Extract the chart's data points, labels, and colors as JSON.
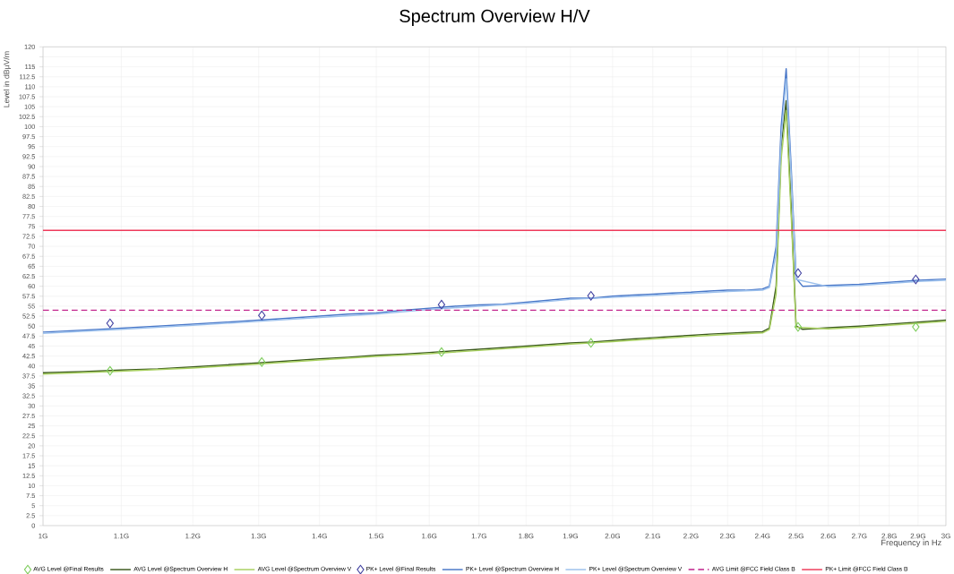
{
  "chart_data": {
    "type": "line",
    "title": "Spectrum Overview H/V",
    "xlabel": "Frequency in Hz",
    "ylabel": "Level in dBµV/m",
    "log": "x",
    "grid": true,
    "legend": "bottom",
    "xlim": [
      1,
      3
    ],
    "ylim": [
      0,
      120
    ],
    "xticks": [
      {
        "value": 1,
        "label": "1G"
      },
      {
        "value": 1.1,
        "label": "1.1G"
      },
      {
        "value": 1.2,
        "label": "1.2G"
      },
      {
        "value": 1.3,
        "label": "1.3G"
      },
      {
        "value": 1.4,
        "label": "1.4G"
      },
      {
        "value": 1.5,
        "label": "1.5G"
      },
      {
        "value": 1.6,
        "label": "1.6G"
      },
      {
        "value": 1.7,
        "label": "1.7G"
      },
      {
        "value": 1.8,
        "label": "1.8G"
      },
      {
        "value": 1.9,
        "label": "1.9G"
      },
      {
        "value": 2.0,
        "label": "2.0G"
      },
      {
        "value": 2.1,
        "label": "2.1G"
      },
      {
        "value": 2.2,
        "label": "2.2G"
      },
      {
        "value": 2.3,
        "label": "2.3G"
      },
      {
        "value": 2.4,
        "label": "2.4G"
      },
      {
        "value": 2.5,
        "label": "2.5G"
      },
      {
        "value": 2.6,
        "label": "2.6G"
      },
      {
        "value": 2.7,
        "label": "2.7G"
      },
      {
        "value": 2.8,
        "label": "2.8G"
      },
      {
        "value": 2.9,
        "label": "2.9G"
      },
      {
        "value": 3,
        "label": "3G"
      }
    ],
    "yticks": [
      0,
      2.5,
      5,
      7.5,
      10,
      12.5,
      15,
      17.5,
      20,
      22.5,
      25,
      27.5,
      30,
      32.5,
      35,
      37.5,
      40,
      42.5,
      45,
      47.5,
      50,
      52.5,
      55,
      57.5,
      60,
      62.5,
      65,
      67.5,
      70,
      72.5,
      75,
      77.5,
      80,
      82.5,
      85,
      87.5,
      90,
      92.5,
      95,
      97.5,
      100,
      102.5,
      105,
      107.5,
      110,
      112.5,
      115,
      {
        "value": 117.5,
        "label": null
      },
      120
    ],
    "series": [
      {
        "name": "AVG Level @Final Results",
        "type": "scatter",
        "marker": "diamond",
        "color": "#7ccc5a",
        "x": [
          1.085,
          1.305,
          1.624,
          1.948,
          2.506,
          2.892
        ],
        "values": [
          38.8,
          41.0,
          43.5,
          45.8,
          49.8,
          49.8
        ]
      },
      {
        "name": "AVG Level @Spectrum Overview H",
        "type": "line",
        "line_style": "solid",
        "color": "#3c5a1e",
        "x": [
          1.0,
          1.05,
          1.1,
          1.15,
          1.2,
          1.25,
          1.3,
          1.35,
          1.4,
          1.45,
          1.5,
          1.55,
          1.6,
          1.65,
          1.7,
          1.75,
          1.8,
          1.85,
          1.9,
          1.95,
          2.0,
          2.05,
          2.1,
          2.15,
          2.2,
          2.25,
          2.3,
          2.35,
          2.4,
          2.42,
          2.44,
          2.455,
          2.47,
          2.485,
          2.5,
          2.52,
          2.6,
          2.7,
          2.8,
          2.9,
          3.0
        ],
        "values": [
          38.3,
          38.6,
          39,
          39.3,
          39.8,
          40.3,
          40.8,
          41.3,
          41.8,
          42.2,
          42.7,
          43,
          43.4,
          43.8,
          44.2,
          44.6,
          45,
          45.4,
          45.8,
          46,
          46.4,
          46.8,
          47.1,
          47.4,
          47.7,
          48,
          48.2,
          48.4,
          48.6,
          49.5,
          60,
          95,
          106.5,
          80,
          50,
          49.2,
          49.6,
          50,
          50.5,
          51,
          51.5
        ]
      },
      {
        "name": "AVG Level @Spectrum Overview V",
        "type": "line",
        "line_style": "solid",
        "color": "#a8d060",
        "x": [
          1.0,
          1.1,
          1.2,
          1.3,
          1.4,
          1.5,
          1.6,
          1.7,
          1.8,
          1.9,
          2.0,
          2.1,
          2.2,
          2.3,
          2.4,
          2.42,
          2.44,
          2.455,
          2.47,
          2.485,
          2.5,
          2.6,
          2.7,
          2.8,
          2.9,
          3.0
        ],
        "values": [
          38,
          38.7,
          39.5,
          40.5,
          41.5,
          42.4,
          43.1,
          43.9,
          44.7,
          45.5,
          46.1,
          46.8,
          47.4,
          47.9,
          48.3,
          49.2,
          58,
          92,
          104,
          78,
          49.7,
          49.3,
          49.7,
          50.2,
          50.7,
          51.2
        ]
      },
      {
        "name": "PK+ Level @Final Results",
        "type": "scatter",
        "marker": "diamond",
        "color": "#4040a0",
        "x": [
          1.085,
          1.305,
          1.624,
          1.948,
          2.506,
          2.892
        ],
        "values": [
          50.7,
          52.7,
          55.4,
          57.6,
          63.3,
          61.7
        ]
      },
      {
        "name": "PK+ Level @Spectrum Overview H",
        "type": "line",
        "line_style": "solid",
        "color": "#4a78c8",
        "x": [
          1.0,
          1.05,
          1.1,
          1.15,
          1.2,
          1.25,
          1.3,
          1.35,
          1.4,
          1.45,
          1.5,
          1.55,
          1.6,
          1.65,
          1.7,
          1.75,
          1.8,
          1.85,
          1.9,
          1.95,
          2.0,
          2.05,
          2.1,
          2.15,
          2.2,
          2.25,
          2.3,
          2.35,
          2.4,
          2.42,
          2.44,
          2.455,
          2.47,
          2.485,
          2.5,
          2.52,
          2.6,
          2.7,
          2.8,
          2.9,
          3.0
        ],
        "values": [
          48.5,
          49,
          49.5,
          50,
          50.5,
          51,
          51.5,
          52,
          52.5,
          53,
          53.3,
          54,
          54.5,
          55,
          55.3,
          55.5,
          56,
          56.5,
          57,
          57,
          57.5,
          57.8,
          58,
          58.3,
          58.5,
          58.8,
          59,
          59,
          59.3,
          60,
          70,
          100,
          114.5,
          90,
          62,
          60,
          60.2,
          60.5,
          61,
          61.5,
          61.8
        ]
      },
      {
        "name": "PK+ Level @Spectrum Overview V",
        "type": "line",
        "line_style": "solid",
        "color": "#9cc0ec",
        "x": [
          1.0,
          1.1,
          1.2,
          1.3,
          1.4,
          1.5,
          1.6,
          1.7,
          1.8,
          1.9,
          2.0,
          2.1,
          2.2,
          2.3,
          2.4,
          2.42,
          2.44,
          2.455,
          2.47,
          2.485,
          2.5,
          2.6,
          2.7,
          2.8,
          2.9,
          3.0
        ],
        "values": [
          48.2,
          49.2,
          50.2,
          51.2,
          52.2,
          53,
          54.2,
          55,
          55.7,
          56.7,
          57.2,
          57.7,
          58.2,
          58.7,
          59,
          59.7,
          68,
          97,
          112,
          88,
          61.7,
          59.9,
          60.2,
          60.7,
          61.2,
          61.5
        ]
      },
      {
        "name": "AVG Limit @FCC Field Class B",
        "type": "line",
        "line_style": "dashed",
        "color": "#c0208a",
        "x": [
          1,
          3
        ],
        "values": [
          54,
          54
        ]
      },
      {
        "name": "PK+ Limit @FCC Field Class B",
        "type": "line",
        "line_style": "solid",
        "color": "#ee3a5a",
        "x": [
          1,
          3
        ],
        "values": [
          74,
          74
        ]
      }
    ]
  }
}
